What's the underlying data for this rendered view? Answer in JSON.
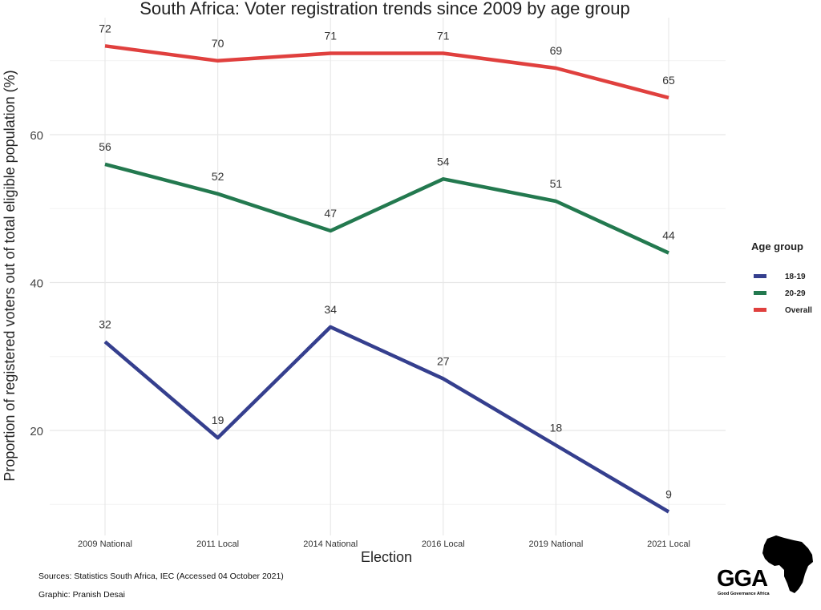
{
  "chart_data": {
    "type": "line",
    "title": "South Africa: Voter registration trends since 2009 by age group",
    "xlabel": "Election",
    "ylabel": "Proportion of registered voters out of total eligible population (%)",
    "categories": [
      "2009 National",
      "2011 Local",
      "2014 National",
      "2016 Local",
      "2019 National",
      "2021 Local"
    ],
    "ylim": [
      5.5,
      75.5
    ],
    "yticks": [
      20,
      40,
      60
    ],
    "yticks_minor": [
      10,
      30,
      50,
      70
    ],
    "grid": true,
    "legend": {
      "title": "Age group",
      "position": "right"
    },
    "series": [
      {
        "name": "18-19",
        "color": "#353f8e",
        "values": [
          32,
          19,
          34,
          27,
          18,
          9
        ]
      },
      {
        "name": "20-29",
        "color": "#23794f",
        "values": [
          56,
          52,
          47,
          54,
          51,
          44
        ]
      },
      {
        "name": "Overall",
        "color": "#e0403e",
        "values": [
          72,
          70,
          71,
          71,
          69,
          65
        ]
      }
    ],
    "annotations": [
      "Sources: Statistics South Africa, IEC (Accessed 04 October 2021)",
      "Graphic: Pranish Desai"
    ]
  },
  "footer": {
    "sources": "Sources: Statistics South Africa, IEC (Accessed 04 October 2021)",
    "graphic": "Graphic: Pranish Desai"
  },
  "logo": {
    "abbr": "GGA",
    "name": "Good Governance Africa"
  }
}
